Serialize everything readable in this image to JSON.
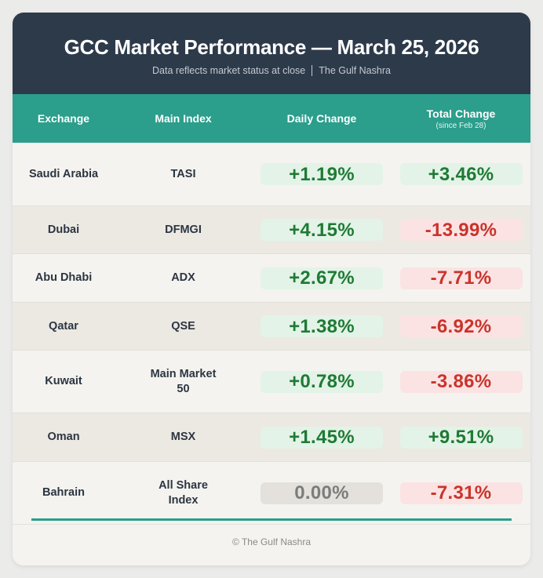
{
  "header": {
    "title": "GCC Market Performance — March 25, 2026",
    "subtitle_left": "Data reflects market status at close",
    "subtitle_right": "The Gulf Nashra"
  },
  "table": {
    "columns": {
      "exchange": "Exchange",
      "index": "Main Index",
      "daily": "Daily Change",
      "total": "Total Change",
      "total_sub": "(since Feb 28)"
    },
    "rows": [
      {
        "exchange": "Saudi Arabia",
        "index": "TASI",
        "daily": "+1.19%",
        "daily_trend": "pos",
        "total": "+3.46%",
        "total_trend": "pos"
      },
      {
        "exchange": "Dubai",
        "index": "DFMGI",
        "daily": "+4.15%",
        "daily_trend": "pos",
        "total": "-13.99%",
        "total_trend": "neg"
      },
      {
        "exchange": "Abu Dhabi",
        "index": "ADX",
        "daily": "+2.67%",
        "daily_trend": "pos",
        "total": "-7.71%",
        "total_trend": "neg"
      },
      {
        "exchange": "Qatar",
        "index": "QSE",
        "daily": "+1.38%",
        "daily_trend": "pos",
        "total": "-6.92%",
        "total_trend": "neg"
      },
      {
        "exchange": "Kuwait",
        "index": "Main Market 50",
        "daily": "+0.78%",
        "daily_trend": "pos",
        "total": "-3.86%",
        "total_trend": "neg"
      },
      {
        "exchange": "Oman",
        "index": "MSX",
        "daily": "+1.45%",
        "daily_trend": "pos",
        "total": "+9.51%",
        "total_trend": "pos"
      },
      {
        "exchange": "Bahrain",
        "index": "All Share Index",
        "daily": "0.00%",
        "daily_trend": "zero",
        "total": "-7.31%",
        "total_trend": "neg"
      }
    ]
  },
  "footer": {
    "text": "© The Gulf Nashra"
  },
  "colors": {
    "header_bg": "#2d3a4a",
    "accent": "#2b9e8c",
    "positive": "#1f7a35",
    "negative": "#c9342b",
    "neutral": "#7c7c7c"
  }
}
